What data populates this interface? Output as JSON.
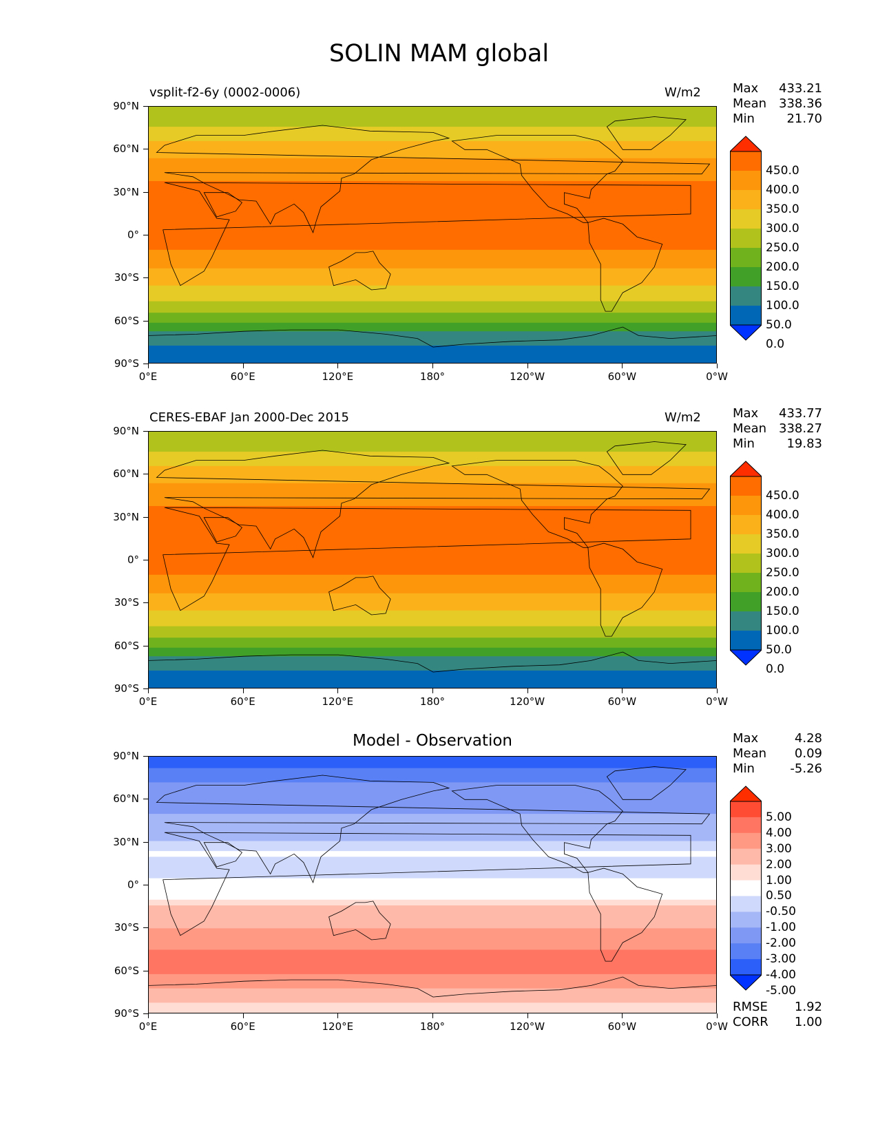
{
  "title": "SOLIN MAM global",
  "colors": {
    "abs_levels": [
      "#0032ff",
      "#0066b6",
      "#348781",
      "#40a028",
      "#70b21e",
      "#b1c21c",
      "#e6cb26",
      "#fbb21a",
      "#fd960b",
      "#ff6c00",
      "#ff2e00"
    ],
    "diff_levels": [
      "#0032ff",
      "#2c5ef9",
      "#5a80f5",
      "#7f98f3",
      "#a6b7f8",
      "#cfd9fb",
      "#ffffff",
      "#ffdcd4",
      "#ffb9a9",
      "#ff9984",
      "#ff7561",
      "#ff4c33",
      "#ff2e00"
    ]
  },
  "panels": [
    {
      "id": "test",
      "title_left": "vsplit-f2-6y (0002-0006)",
      "title_right": "W/m2",
      "stats": [
        {
          "label": "Max",
          "value": "433.21"
        },
        {
          "label": "Mean",
          "value": "338.36"
        },
        {
          "label": "Min",
          "value": "21.70"
        }
      ],
      "colorbar_labels": [
        "450.0",
        "400.0",
        "350.0",
        "300.0",
        "250.0",
        "200.0",
        "150.0",
        "100.0",
        "50.0",
        "0.0"
      ]
    },
    {
      "id": "ref",
      "title_left": "CERES-EBAF Jan 2000-Dec 2015",
      "title_right": "W/m2",
      "stats": [
        {
          "label": "Max",
          "value": "433.77"
        },
        {
          "label": "Mean",
          "value": "338.27"
        },
        {
          "label": "Min",
          "value": "19.83"
        }
      ],
      "colorbar_labels": [
        "450.0",
        "400.0",
        "350.0",
        "300.0",
        "250.0",
        "200.0",
        "150.0",
        "100.0",
        "50.0",
        "0.0"
      ]
    },
    {
      "id": "diff",
      "title_center": "Model - Observation",
      "stats": [
        {
          "label": "Max",
          "value": "4.28"
        },
        {
          "label": "Mean",
          "value": "0.09"
        },
        {
          "label": "Min",
          "value": "-5.26"
        }
      ],
      "colorbar_labels": [
        "5.00",
        "4.00",
        "3.00",
        "2.00",
        "1.00",
        "0.50",
        "-0.50",
        "-1.00",
        "-2.00",
        "-3.00",
        "-4.00",
        "-5.00"
      ],
      "extra": [
        {
          "label": "RMSE",
          "value": "1.92"
        },
        {
          "label": "CORR",
          "value": "1.00"
        }
      ]
    }
  ],
  "axes": {
    "lat_ticks": [
      "90°N",
      "60°N",
      "30°N",
      "0°",
      "30°S",
      "60°S",
      "90°S"
    ],
    "lon_ticks": [
      "0°E",
      "60°E",
      "120°E",
      "180°",
      "120°W",
      "60°W",
      "0°W"
    ]
  },
  "chart_data": [
    {
      "type": "heatmap",
      "title": "vsplit-f2-6y (0002-0006)",
      "units": "W/m2",
      "xlim": [
        0,
        360
      ],
      "ylim": [
        -90,
        90
      ],
      "levels": [
        0,
        50,
        100,
        150,
        200,
        250,
        300,
        350,
        400,
        450
      ],
      "zonal_bands": [
        {
          "lat": [
            76,
            90
          ],
          "value": 225
        },
        {
          "lat": [
            66,
            76
          ],
          "value": 275
        },
        {
          "lat": [
            54,
            66
          ],
          "value": 325
        },
        {
          "lat": [
            38,
            54
          ],
          "value": 375
        },
        {
          "lat": [
            -10,
            38
          ],
          "value": 425
        },
        {
          "lat": [
            -23,
            -10
          ],
          "value": 375
        },
        {
          "lat": [
            -35,
            -23
          ],
          "value": 325
        },
        {
          "lat": [
            -46,
            -35
          ],
          "value": 275
        },
        {
          "lat": [
            -54,
            -46
          ],
          "value": 225
        },
        {
          "lat": [
            -61,
            -54
          ],
          "value": 175
        },
        {
          "lat": [
            -67,
            -61
          ],
          "value": 125
        },
        {
          "lat": [
            -77,
            -67
          ],
          "value": 75
        },
        {
          "lat": [
            -90,
            -77
          ],
          "value": 25
        }
      ],
      "stats": {
        "max": 433.21,
        "mean": 338.36,
        "min": 21.7
      }
    },
    {
      "type": "heatmap",
      "title": "CERES-EBAF Jan 2000-Dec 2015",
      "units": "W/m2",
      "xlim": [
        0,
        360
      ],
      "ylim": [
        -90,
        90
      ],
      "levels": [
        0,
        50,
        100,
        150,
        200,
        250,
        300,
        350,
        400,
        450
      ],
      "zonal_bands": [
        {
          "lat": [
            76,
            90
          ],
          "value": 225
        },
        {
          "lat": [
            66,
            76
          ],
          "value": 275
        },
        {
          "lat": [
            54,
            66
          ],
          "value": 325
        },
        {
          "lat": [
            38,
            54
          ],
          "value": 375
        },
        {
          "lat": [
            -10,
            38
          ],
          "value": 425
        },
        {
          "lat": [
            -23,
            -10
          ],
          "value": 375
        },
        {
          "lat": [
            -35,
            -23
          ],
          "value": 325
        },
        {
          "lat": [
            -46,
            -35
          ],
          "value": 275
        },
        {
          "lat": [
            -54,
            -46
          ],
          "value": 225
        },
        {
          "lat": [
            -61,
            -54
          ],
          "value": 175
        },
        {
          "lat": [
            -67,
            -61
          ],
          "value": 125
        },
        {
          "lat": [
            -77,
            -67
          ],
          "value": 75
        },
        {
          "lat": [
            -90,
            -77
          ],
          "value": 25
        }
      ],
      "stats": {
        "max": 433.77,
        "mean": 338.27,
        "min": 19.83
      }
    },
    {
      "type": "heatmap",
      "title": "Model - Observation",
      "xlim": [
        0,
        360
      ],
      "ylim": [
        -90,
        90
      ],
      "levels": [
        -5,
        -4,
        -3,
        -2,
        -1,
        -0.5,
        0.5,
        1,
        2,
        3,
        4,
        5
      ],
      "zonal_bands": [
        {
          "lat": [
            82,
            90
          ],
          "value": -4.5
        },
        {
          "lat": [
            72,
            82
          ],
          "value": -3.5
        },
        {
          "lat": [
            50,
            72
          ],
          "value": -2.5
        },
        {
          "lat": [
            31,
            50
          ],
          "value": -1.5
        },
        {
          "lat": [
            24,
            31
          ],
          "value": -0.75
        },
        {
          "lat": [
            20,
            24
          ],
          "value": 0
        },
        {
          "lat": [
            5,
            20
          ],
          "value": -0.75
        },
        {
          "lat": [
            -10,
            5
          ],
          "value": 0
        },
        {
          "lat": [
            -14,
            -10
          ],
          "value": 0.75
        },
        {
          "lat": [
            -30,
            -14
          ],
          "value": 1.5
        },
        {
          "lat": [
            -45,
            -30
          ],
          "value": 2.5
        },
        {
          "lat": [
            -62,
            -45
          ],
          "value": 3.5
        },
        {
          "lat": [
            -72,
            -62
          ],
          "value": 2.5
        },
        {
          "lat": [
            -82,
            -72
          ],
          "value": 1.5
        },
        {
          "lat": [
            -90,
            -82
          ],
          "value": 0.75
        }
      ],
      "stats": {
        "max": 4.28,
        "mean": 0.09,
        "min": -5.26,
        "rmse": 1.92,
        "corr": 1.0
      }
    }
  ]
}
